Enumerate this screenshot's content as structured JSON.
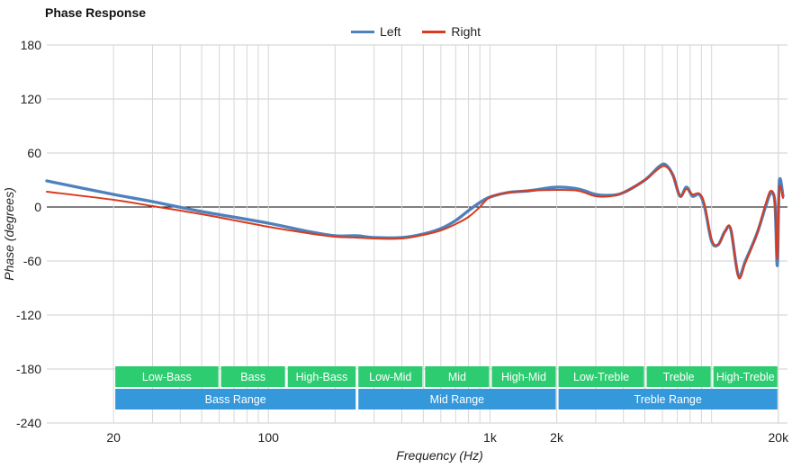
{
  "chart_data": {
    "type": "line",
    "title": "Phase Response",
    "xlabel": "Frequency (Hz)",
    "ylabel": "Phase (degrees)",
    "xscale": "log",
    "xlim": [
      10,
      22000
    ],
    "ylim": [
      -240,
      180
    ],
    "yticks": [
      180,
      120,
      60,
      0,
      -60,
      -120,
      -180,
      -240
    ],
    "xticks": [
      {
        "value": 20,
        "label": "20"
      },
      {
        "value": 100,
        "label": "100"
      },
      {
        "value": 1000,
        "label": "1k"
      },
      {
        "value": 2000,
        "label": "2k"
      },
      {
        "value": 20000,
        "label": "20k"
      }
    ],
    "grid": true,
    "legend_position": "top-center",
    "series": [
      {
        "name": "Left",
        "color": "#4f81bd",
        "points": [
          [
            10,
            29
          ],
          [
            20,
            14
          ],
          [
            30,
            6
          ],
          [
            50,
            -5
          ],
          [
            100,
            -18
          ],
          [
            150,
            -27
          ],
          [
            200,
            -32
          ],
          [
            250,
            -32
          ],
          [
            300,
            -34
          ],
          [
            400,
            -34
          ],
          [
            500,
            -30
          ],
          [
            600,
            -24
          ],
          [
            700,
            -15
          ],
          [
            800,
            -4
          ],
          [
            900,
            5
          ],
          [
            1000,
            11
          ],
          [
            1200,
            16
          ],
          [
            1500,
            18
          ],
          [
            2000,
            22
          ],
          [
            2500,
            20
          ],
          [
            3000,
            14
          ],
          [
            3500,
            13
          ],
          [
            4000,
            16
          ],
          [
            5000,
            30
          ],
          [
            5800,
            45
          ],
          [
            6200,
            47
          ],
          [
            6700,
            35
          ],
          [
            7200,
            12
          ],
          [
            7700,
            22
          ],
          [
            8200,
            12
          ],
          [
            8800,
            14
          ],
          [
            9300,
            0
          ],
          [
            10000,
            -38
          ],
          [
            10700,
            -42
          ],
          [
            11500,
            -27
          ],
          [
            12200,
            -25
          ],
          [
            13200,
            -76
          ],
          [
            14200,
            -60
          ],
          [
            16000,
            -30
          ],
          [
            17500,
            0
          ],
          [
            18500,
            15
          ],
          [
            19300,
            5
          ],
          [
            19800,
            -65
          ],
          [
            20200,
            28
          ],
          [
            21000,
            12
          ]
        ]
      },
      {
        "name": "Right",
        "color": "#d83b1d",
        "points": [
          [
            10,
            17
          ],
          [
            20,
            8
          ],
          [
            30,
            1
          ],
          [
            50,
            -8
          ],
          [
            100,
            -22
          ],
          [
            150,
            -29
          ],
          [
            200,
            -33
          ],
          [
            250,
            -34
          ],
          [
            300,
            -35
          ],
          [
            400,
            -35
          ],
          [
            500,
            -31
          ],
          [
            600,
            -26
          ],
          [
            700,
            -19
          ],
          [
            800,
            -11
          ],
          [
            900,
            0
          ],
          [
            1000,
            11
          ],
          [
            1200,
            16
          ],
          [
            1500,
            18
          ],
          [
            2000,
            19
          ],
          [
            2500,
            18
          ],
          [
            3000,
            12
          ],
          [
            3500,
            12
          ],
          [
            4000,
            16
          ],
          [
            5000,
            30
          ],
          [
            5800,
            43
          ],
          [
            6200,
            45
          ],
          [
            6700,
            35
          ],
          [
            7200,
            12
          ],
          [
            7700,
            20
          ],
          [
            8200,
            14
          ],
          [
            8800,
            15
          ],
          [
            9300,
            3
          ],
          [
            10000,
            -36
          ],
          [
            10700,
            -42
          ],
          [
            11500,
            -27
          ],
          [
            12200,
            -24
          ],
          [
            13200,
            -78
          ],
          [
            14200,
            -62
          ],
          [
            16000,
            -30
          ],
          [
            17500,
            3
          ],
          [
            18500,
            18
          ],
          [
            19300,
            5
          ],
          [
            19800,
            -58
          ],
          [
            20200,
            20
          ],
          [
            21000,
            10
          ]
        ]
      }
    ],
    "bands": [
      {
        "row": 1,
        "label": "Low-Bass",
        "from": 20,
        "to": 60,
        "color": "#2ecc71"
      },
      {
        "row": 1,
        "label": "Bass",
        "from": 60,
        "to": 120,
        "color": "#2ecc71"
      },
      {
        "row": 1,
        "label": "High-Bass",
        "from": 120,
        "to": 250,
        "color": "#2ecc71"
      },
      {
        "row": 1,
        "label": "Low-Mid",
        "from": 250,
        "to": 500,
        "color": "#2ecc71"
      },
      {
        "row": 1,
        "label": "Mid",
        "from": 500,
        "to": 1000,
        "color": "#2ecc71"
      },
      {
        "row": 1,
        "label": "High-Mid",
        "from": 1000,
        "to": 2000,
        "color": "#2ecc71"
      },
      {
        "row": 1,
        "label": "Low-Treble",
        "from": 2000,
        "to": 5000,
        "color": "#2ecc71"
      },
      {
        "row": 1,
        "label": "Treble",
        "from": 5000,
        "to": 10000,
        "color": "#2ecc71"
      },
      {
        "row": 1,
        "label": "High-Treble",
        "from": 10000,
        "to": 20000,
        "color": "#2ecc71"
      },
      {
        "row": 2,
        "label": "Bass Range",
        "from": 20,
        "to": 250,
        "color": "#3498db"
      },
      {
        "row": 2,
        "label": "Mid Range",
        "from": 250,
        "to": 2000,
        "color": "#3498db"
      },
      {
        "row": 2,
        "label": "Treble Range",
        "from": 2000,
        "to": 20000,
        "color": "#3498db"
      }
    ]
  }
}
